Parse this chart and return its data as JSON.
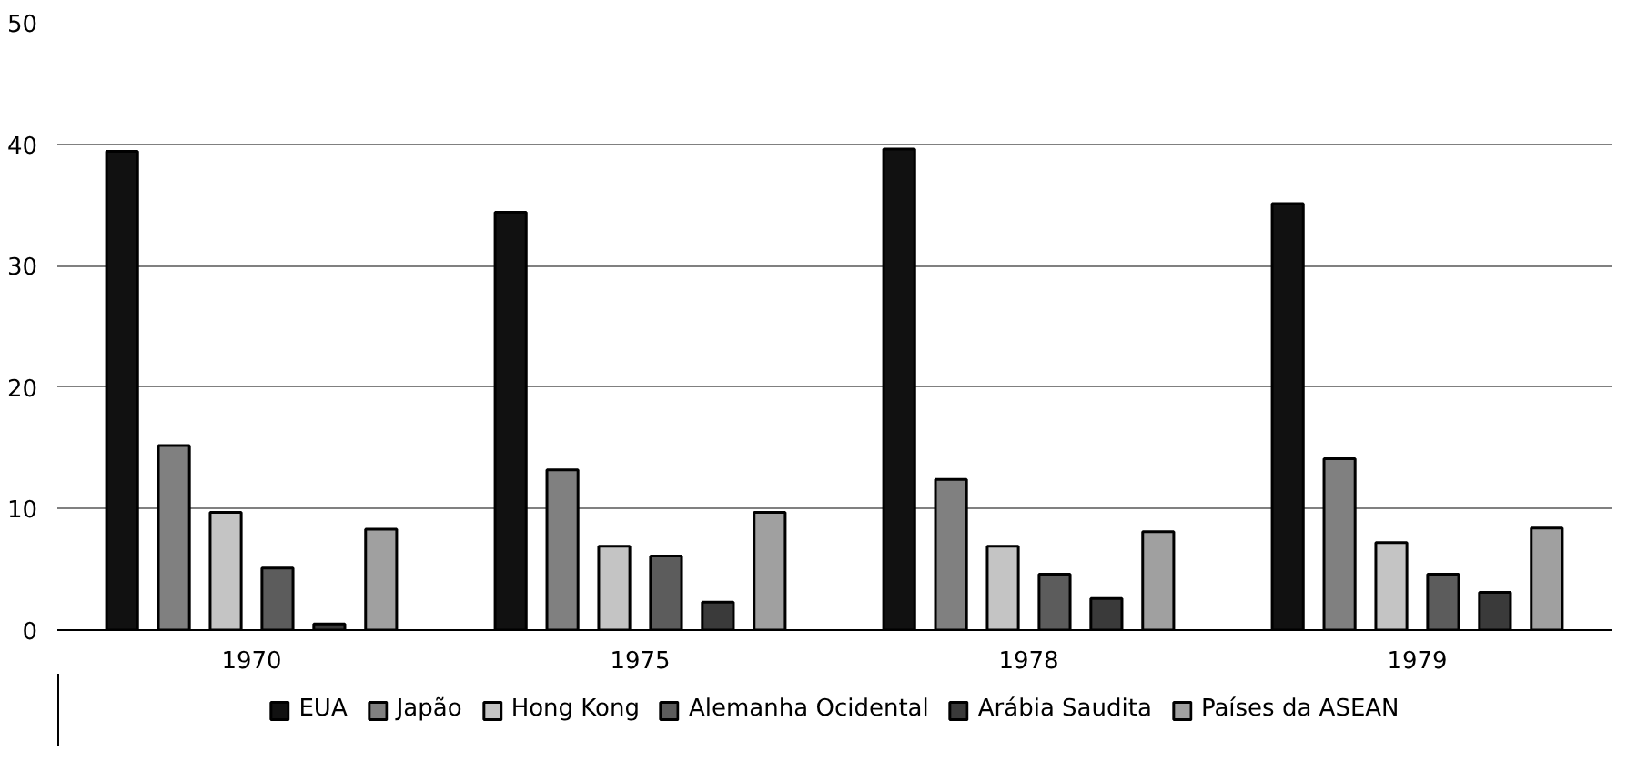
{
  "chart_data": {
    "type": "bar",
    "categories": [
      "1970",
      "1975",
      "1978",
      "1979"
    ],
    "series": [
      {
        "name": "EUA",
        "color": "#111111",
        "values": [
          39.4,
          34.4,
          39.6,
          35.1
        ]
      },
      {
        "name": "Japão",
        "color": "#808080",
        "values": [
          15.2,
          13.2,
          12.4,
          14.1
        ]
      },
      {
        "name": "Hong Kong",
        "color": "#c4c4c4",
        "values": [
          9.7,
          6.9,
          6.9,
          7.2
        ]
      },
      {
        "name": "Alemanha Ocidental",
        "color": "#5c5c5c",
        "values": [
          5.1,
          6.1,
          4.6,
          4.6
        ]
      },
      {
        "name": "Arábia Saudita",
        "color": "#3a3a3a",
        "values": [
          0.5,
          2.3,
          2.6,
          3.1
        ]
      },
      {
        "name": "Países da ASEAN",
        "color": "#a0a0a0",
        "values": [
          8.3,
          9.7,
          8.1,
          8.4
        ]
      }
    ],
    "ylim": [
      0,
      50
    ],
    "yticks": [
      0,
      10,
      20,
      30,
      40,
      50
    ],
    "grid": "y",
    "legend": "bottom"
  }
}
